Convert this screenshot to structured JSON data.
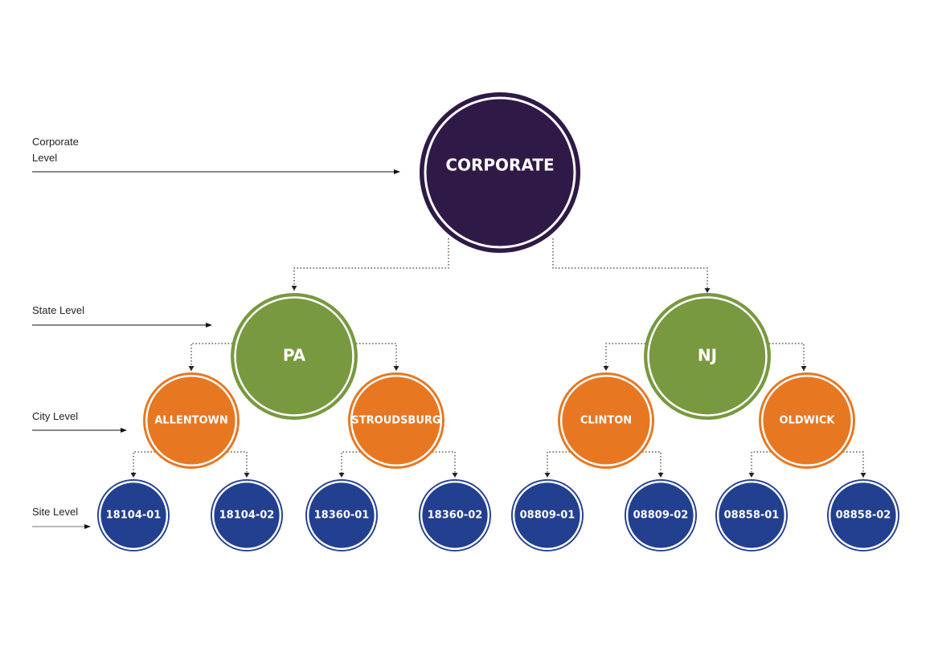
{
  "levels": [
    "Corporate Level",
    "State Level",
    "City Level",
    "Site Level"
  ],
  "nodes": [
    "CORPORATE",
    "PA",
    "NJ",
    "ALLENTOWN",
    "STROUDSBURG",
    "CLINTON",
    "OLDWICK",
    "18104-01",
    "18104-02",
    "18360-01",
    "18360-02",
    "08809-01",
    "08809-02",
    "08858-01",
    "08858-02"
  ]
}
